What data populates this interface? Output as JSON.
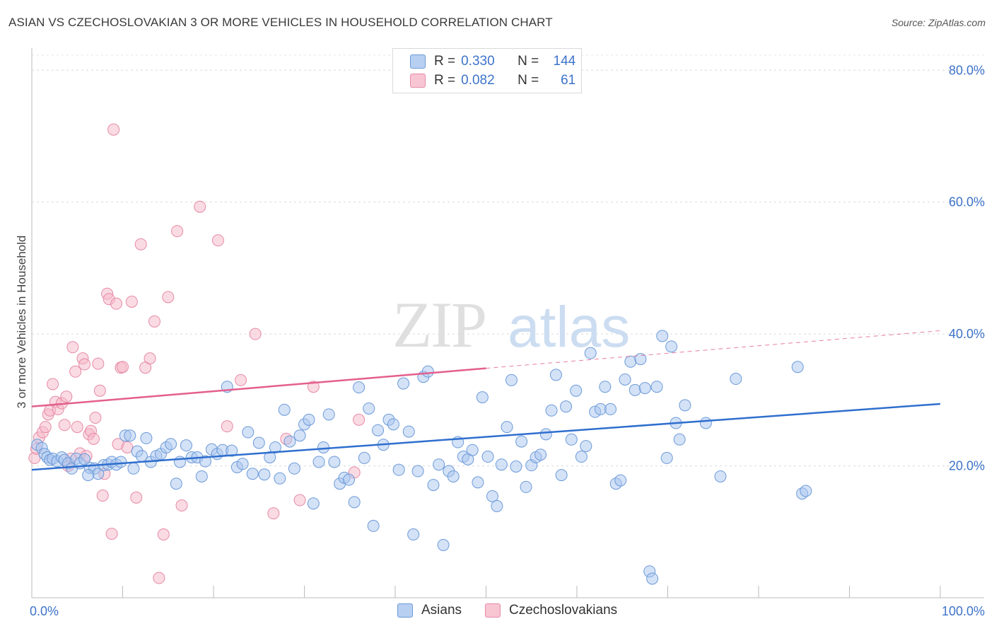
{
  "title": "ASIAN VS CZECHOSLOVAKIAN 3 OR MORE VEHICLES IN HOUSEHOLD CORRELATION CHART",
  "source": "Source: ZipAtlas.com",
  "watermark": {
    "zip": "ZIP",
    "atlas": "atlas"
  },
  "legend": {
    "r_label": "R =",
    "n_label": "N =",
    "asians": {
      "r": "0.330",
      "n": "144"
    },
    "czech": {
      "r": "0.082",
      "n": "61"
    }
  },
  "colors": {
    "asian_fill": "#a9c6ef",
    "asian_stroke": "#6c9ad8",
    "asian_line": "#2f6fce",
    "czech_fill": "#f6b7c8",
    "czech_stroke": "#e68aa6",
    "czech_line": "#e35f8d",
    "axis_text": "#3d73c9"
  },
  "chart_data": {
    "type": "scatter",
    "title": "ASIAN VS CZECHOSLOVAKIAN 3 OR MORE VEHICLES IN HOUSEHOLD CORRELATION CHART",
    "xlabel": "",
    "ylabel": "3 or more Vehicles in Household",
    "xlim": [
      0,
      100
    ],
    "ylim": [
      0,
      84
    ],
    "x_tick_labels": [
      "0.0%",
      "100.0%"
    ],
    "y_ticks": [
      20,
      40,
      60,
      80
    ],
    "y_tick_labels": [
      "20.0%",
      "40.0%",
      "60.0%",
      "80.0%"
    ],
    "grid": true,
    "legend_position": "top-center",
    "series": [
      {
        "name": "Asians",
        "trend": {
          "x": [
            0,
            100
          ],
          "y": [
            19.4,
            29.4
          ]
        },
        "points": [
          [
            0.6,
            23.2
          ],
          [
            1.1,
            22.7
          ],
          [
            1.4,
            21.8
          ],
          [
            1.7,
            21.3
          ],
          [
            2.0,
            20.9
          ],
          [
            2.3,
            21.1
          ],
          [
            2.8,
            20.7
          ],
          [
            3.3,
            21.3
          ],
          [
            3.6,
            20.9
          ],
          [
            4.0,
            20.4
          ],
          [
            4.4,
            19.6
          ],
          [
            4.9,
            21.1
          ],
          [
            5.3,
            20.4
          ],
          [
            5.8,
            21.0
          ],
          [
            6.4,
            19.7
          ],
          [
            6.9,
            19.6
          ],
          [
            7.3,
            18.8
          ],
          [
            7.9,
            20.1
          ],
          [
            8.4,
            20.2
          ],
          [
            8.8,
            20.6
          ],
          [
            9.3,
            20.2
          ],
          [
            9.8,
            20.6
          ],
          [
            10.3,
            24.6
          ],
          [
            10.8,
            24.6
          ],
          [
            11.2,
            19.6
          ],
          [
            11.6,
            22.2
          ],
          [
            12.1,
            21.5
          ],
          [
            12.6,
            24.2
          ],
          [
            13.1,
            20.6
          ],
          [
            13.7,
            21.5
          ],
          [
            14.2,
            21.8
          ],
          [
            14.8,
            22.8
          ],
          [
            15.3,
            23.3
          ],
          [
            15.9,
            17.3
          ],
          [
            16.3,
            20.6
          ],
          [
            17.0,
            23.1
          ],
          [
            17.6,
            21.3
          ],
          [
            18.2,
            21.3
          ],
          [
            18.7,
            18.4
          ],
          [
            19.1,
            20.7
          ],
          [
            19.8,
            22.5
          ],
          [
            20.4,
            21.8
          ],
          [
            21.0,
            22.4
          ],
          [
            21.5,
            32.0
          ],
          [
            22.0,
            22.3
          ],
          [
            22.6,
            19.8
          ],
          [
            23.2,
            20.3
          ],
          [
            23.8,
            25.1
          ],
          [
            24.3,
            18.8
          ],
          [
            25.0,
            23.5
          ],
          [
            25.6,
            18.7
          ],
          [
            26.2,
            21.3
          ],
          [
            26.8,
            22.8
          ],
          [
            27.3,
            18.1
          ],
          [
            27.8,
            28.5
          ],
          [
            28.4,
            23.7
          ],
          [
            28.9,
            19.6
          ],
          [
            29.5,
            24.6
          ],
          [
            30.0,
            26.3
          ],
          [
            30.5,
            27.0
          ],
          [
            31.0,
            14.3
          ],
          [
            31.6,
            20.6
          ],
          [
            32.1,
            22.8
          ],
          [
            32.7,
            27.8
          ],
          [
            33.3,
            20.6
          ],
          [
            33.9,
            17.3
          ],
          [
            34.4,
            18.2
          ],
          [
            34.9,
            17.9
          ],
          [
            35.5,
            14.5
          ],
          [
            36.0,
            31.9
          ],
          [
            36.6,
            21.2
          ],
          [
            37.1,
            28.7
          ],
          [
            37.6,
            10.9
          ],
          [
            38.1,
            25.4
          ],
          [
            38.7,
            23.2
          ],
          [
            39.3,
            27.0
          ],
          [
            39.8,
            26.3
          ],
          [
            40.4,
            19.4
          ],
          [
            40.9,
            32.5
          ],
          [
            41.5,
            25.2
          ],
          [
            42.0,
            9.6
          ],
          [
            42.5,
            19.2
          ],
          [
            43.1,
            33.5
          ],
          [
            43.6,
            34.3
          ],
          [
            44.2,
            17.1
          ],
          [
            44.8,
            20.2
          ],
          [
            45.3,
            8.0
          ],
          [
            45.9,
            19.2
          ],
          [
            46.4,
            18.4
          ],
          [
            46.9,
            23.6
          ],
          [
            47.5,
            21.4
          ],
          [
            48.0,
            21.0
          ],
          [
            48.5,
            22.4
          ],
          [
            49.1,
            17.5
          ],
          [
            49.6,
            30.4
          ],
          [
            50.2,
            21.4
          ],
          [
            50.7,
            15.4
          ],
          [
            51.2,
            13.9
          ],
          [
            51.7,
            20.2
          ],
          [
            52.3,
            25.9
          ],
          [
            52.8,
            33.0
          ],
          [
            53.3,
            19.9
          ],
          [
            53.9,
            23.7
          ],
          [
            54.4,
            16.8
          ],
          [
            55.0,
            20.1
          ],
          [
            55.5,
            21.3
          ],
          [
            56.0,
            21.7
          ],
          [
            56.6,
            24.8
          ],
          [
            57.2,
            28.4
          ],
          [
            57.7,
            33.8
          ],
          [
            58.3,
            18.6
          ],
          [
            58.8,
            29.0
          ],
          [
            59.4,
            24.0
          ],
          [
            59.9,
            31.4
          ],
          [
            60.5,
            21.4
          ],
          [
            61.0,
            23.0
          ],
          [
            61.5,
            37.1
          ],
          [
            62.0,
            28.2
          ],
          [
            62.6,
            28.6
          ],
          [
            63.1,
            32.0
          ],
          [
            63.7,
            28.6
          ],
          [
            64.3,
            17.3
          ],
          [
            64.8,
            17.8
          ],
          [
            65.3,
            33.1
          ],
          [
            65.9,
            35.8
          ],
          [
            66.4,
            31.5
          ],
          [
            67.0,
            36.2
          ],
          [
            67.5,
            31.8
          ],
          [
            68.0,
            4.0
          ],
          [
            68.3,
            2.9
          ],
          [
            68.8,
            32.0
          ],
          [
            69.4,
            39.7
          ],
          [
            69.9,
            21.2
          ],
          [
            70.4,
            38.1
          ],
          [
            70.9,
            26.5
          ],
          [
            71.3,
            24.0
          ],
          [
            71.9,
            29.2
          ],
          [
            74.2,
            26.5
          ],
          [
            75.8,
            18.4
          ],
          [
            77.5,
            33.2
          ],
          [
            84.3,
            35.0
          ],
          [
            84.8,
            15.8
          ],
          [
            85.2,
            16.2
          ],
          [
            6.2,
            18.6
          ]
        ]
      },
      {
        "name": "Czechoslovakians",
        "trend": {
          "x": [
            0,
            50
          ],
          "y": [
            29.0,
            34.8
          ]
        },
        "trend_dashed": {
          "x": [
            50,
            100
          ],
          "y": [
            34.8,
            40.5
          ]
        },
        "points": [
          [
            0.3,
            21.2
          ],
          [
            0.5,
            22.6
          ],
          [
            0.8,
            24.3
          ],
          [
            1.2,
            25.1
          ],
          [
            1.5,
            25.9
          ],
          [
            1.8,
            27.8
          ],
          [
            2.0,
            28.4
          ],
          [
            2.3,
            32.4
          ],
          [
            2.6,
            29.7
          ],
          [
            2.9,
            28.6
          ],
          [
            3.3,
            29.5
          ],
          [
            3.6,
            26.2
          ],
          [
            3.8,
            30.5
          ],
          [
            4.0,
            20.0
          ],
          [
            4.3,
            21.1
          ],
          [
            4.5,
            38.0
          ],
          [
            4.8,
            34.3
          ],
          [
            5.0,
            25.9
          ],
          [
            5.3,
            21.9
          ],
          [
            5.6,
            36.3
          ],
          [
            5.8,
            35.4
          ],
          [
            6.0,
            21.5
          ],
          [
            6.3,
            24.8
          ],
          [
            6.5,
            25.3
          ],
          [
            6.8,
            24.1
          ],
          [
            7.0,
            27.3
          ],
          [
            7.3,
            35.5
          ],
          [
            7.5,
            31.4
          ],
          [
            7.8,
            15.5
          ],
          [
            8.0,
            18.8
          ],
          [
            8.3,
            46.1
          ],
          [
            8.5,
            45.3
          ],
          [
            8.8,
            9.7
          ],
          [
            9.0,
            71.0
          ],
          [
            9.3,
            44.6
          ],
          [
            9.5,
            23.3
          ],
          [
            9.8,
            34.9
          ],
          [
            10.0,
            35.0
          ],
          [
            10.5,
            22.8
          ],
          [
            11.0,
            44.9
          ],
          [
            11.5,
            15.2
          ],
          [
            12.0,
            53.6
          ],
          [
            12.5,
            34.9
          ],
          [
            13.0,
            36.3
          ],
          [
            13.5,
            41.9
          ],
          [
            14.0,
            3.0
          ],
          [
            14.5,
            9.6
          ],
          [
            15.0,
            45.6
          ],
          [
            16.0,
            55.6
          ],
          [
            16.5,
            14.0
          ],
          [
            18.5,
            59.3
          ],
          [
            20.5,
            54.2
          ],
          [
            21.5,
            26.0
          ],
          [
            23.0,
            33.0
          ],
          [
            24.6,
            40.0
          ],
          [
            26.6,
            12.8
          ],
          [
            28.0,
            24.1
          ],
          [
            29.5,
            14.8
          ],
          [
            31.0,
            32.0
          ],
          [
            35.5,
            19.0
          ],
          [
            36.0,
            27.0
          ]
        ]
      }
    ]
  },
  "bottom_legend": {
    "asians": "Asians",
    "czech": "Czechoslovakians"
  }
}
